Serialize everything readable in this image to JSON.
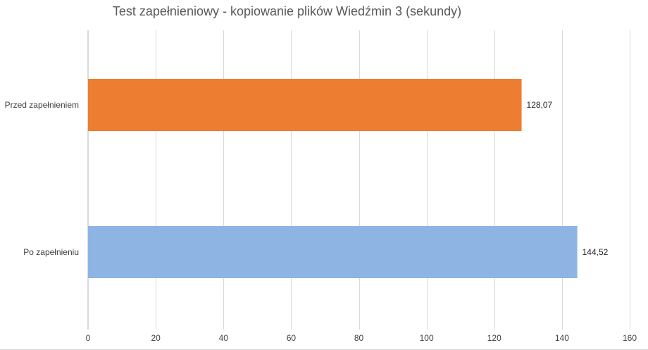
{
  "chart_title": "Test zapełnieniowy - kopiowanie plików Wiedźmin 3 (sekundy)",
  "chart_data": {
    "type": "bar",
    "orientation": "horizontal",
    "title": "Test zapełnieniowy - kopiowanie plików Wiedźmin 3 (sekundy)",
    "categories": [
      "Przed zapełnieniem",
      "Po zapełnieniu"
    ],
    "values": [
      128.07,
      144.52
    ],
    "value_labels": [
      "128,07",
      "144,52"
    ],
    "bar_colors": [
      "#ED7D31",
      "#8EB4E3"
    ],
    "xlim": [
      0,
      160
    ],
    "x_ticks": [
      0,
      20,
      40,
      60,
      80,
      100,
      120,
      140,
      160
    ],
    "x_tick_labels": [
      "0",
      "20",
      "40",
      "60",
      "80",
      "100",
      "120",
      "140",
      "160"
    ],
    "grid": true,
    "grid_color": "#d9d9d9",
    "legend": false,
    "xlabel": "",
    "ylabel": ""
  }
}
